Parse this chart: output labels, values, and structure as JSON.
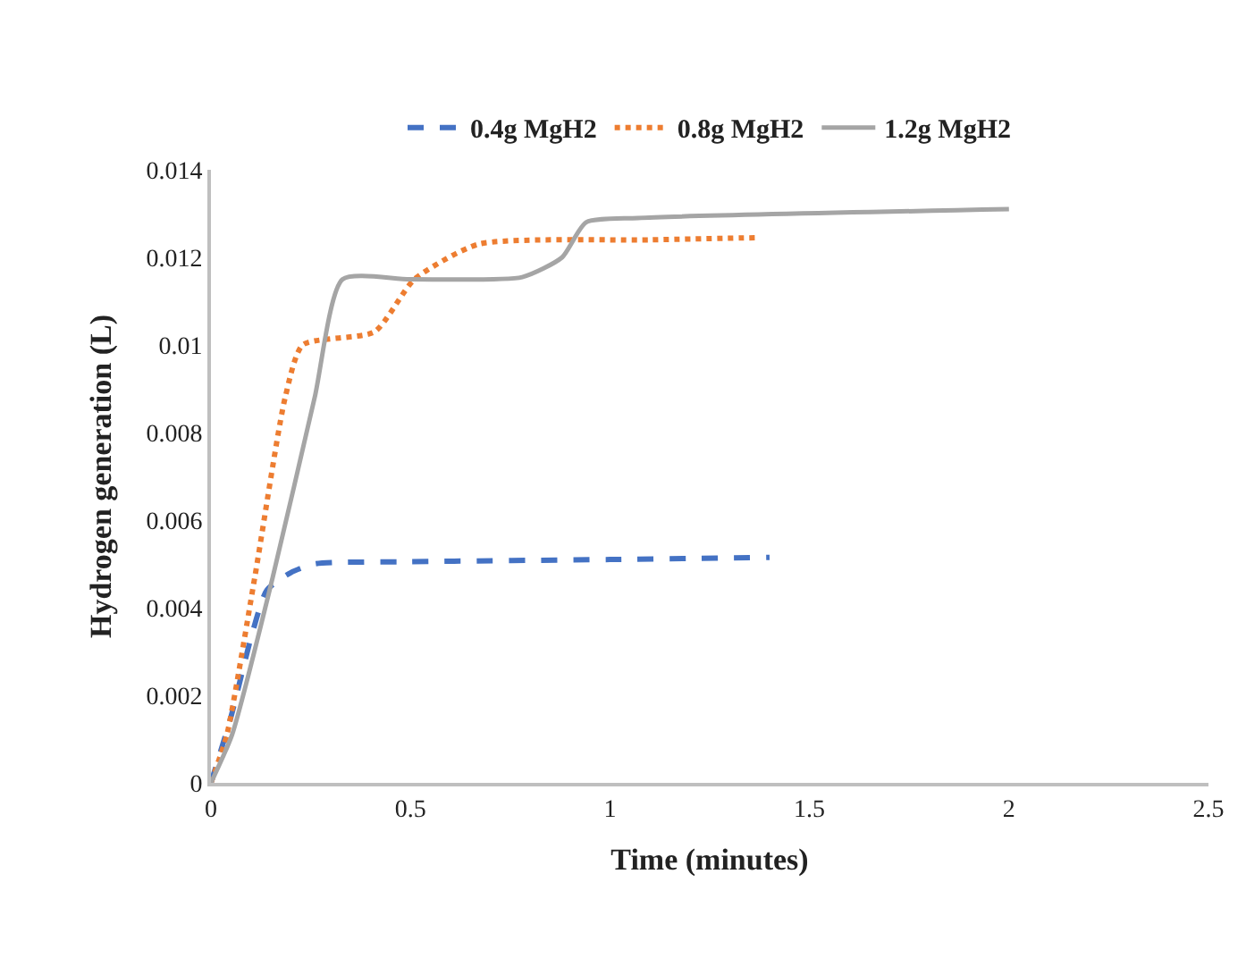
{
  "chart_data": {
    "type": "line",
    "xlabel": "Time (minutes)",
    "ylabel": "Hydrogen generation (L)",
    "xlim": [
      0,
      2.5
    ],
    "xticks": [
      0,
      0.5,
      1,
      1.5,
      2,
      2.5
    ],
    "ylim": [
      0,
      0.014
    ],
    "yticks": [
      0,
      0.002,
      0.004,
      0.006,
      0.008,
      0.01,
      0.012,
      0.014
    ],
    "legend": "top",
    "marker": "none",
    "series": [
      {
        "name": "0.4g MgH2",
        "color": "#4472c4",
        "line_style": "dashed",
        "x": [
          0,
          0.05,
          0.1,
          0.14,
          0.2,
          0.26,
          0.5,
          1.0,
          1.4
        ],
        "values": [
          0,
          0.0015,
          0.0033,
          0.0044,
          0.0048,
          0.005,
          0.00505,
          0.0051,
          0.00515
        ]
      },
      {
        "name": "0.8g MgH2",
        "color": "#ed7d31",
        "line_style": "dotted",
        "x": [
          0,
          0.04,
          0.11,
          0.186,
          0.23,
          0.41,
          0.51,
          0.67,
          1.1,
          1.37
        ],
        "values": [
          0,
          0.0011,
          0.0047,
          0.0088,
          0.01,
          0.0103,
          0.0115,
          0.0123,
          0.0124,
          0.01245
        ]
      },
      {
        "name": "1.2g MgH2",
        "color": "#a5a5a5",
        "line_style": "solid",
        "x": [
          0,
          0.053,
          0.155,
          0.26,
          0.33,
          0.5,
          0.78,
          0.88,
          0.94,
          1.07,
          2.0
        ],
        "values": [
          0,
          0.0011,
          0.0047,
          0.0088,
          0.0115,
          0.0115,
          0.01155,
          0.012,
          0.0128,
          0.0129,
          0.0131
        ]
      }
    ]
  }
}
